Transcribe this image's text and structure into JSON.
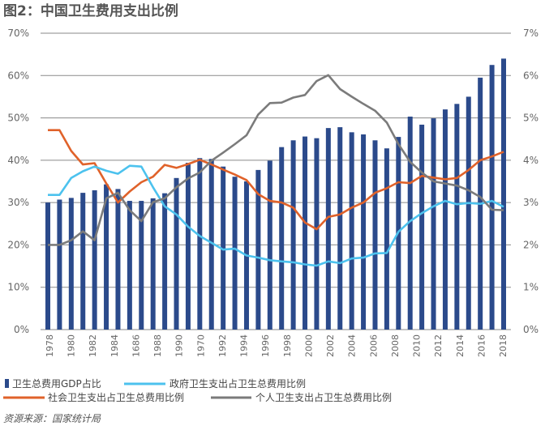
{
  "chart_data": {
    "type": "bar+line",
    "title": "图2：中国卫生费用支出比例",
    "source": "资源来源：国家统计局",
    "colors": {
      "bar": "#2b4a8b",
      "government": "#4cc2ee",
      "social": "#e0622a",
      "personal": "#7b7b7b",
      "grid": "#8a8a8a"
    },
    "x_tick_labels": [
      "1978",
      "1980",
      "1982",
      "1984",
      "1686",
      "1988",
      "1990",
      "1970",
      "1992",
      "1994",
      "1996",
      "1998",
      "2000",
      "2002",
      "2004",
      "2006",
      "2008",
      "2010",
      "2012",
      "2014",
      "2016",
      "2018"
    ],
    "left_axis": {
      "ylim": [
        0,
        70
      ],
      "ticks": [
        "0%",
        "10%",
        "20%",
        "30%",
        "40%",
        "50%",
        "60%",
        "70%"
      ]
    },
    "right_axis": {
      "ylim": [
        0,
        7
      ],
      "ticks": [
        "0%",
        "1%",
        "2%",
        "3%",
        "4%",
        "5%",
        "6%",
        "7%"
      ]
    },
    "grid": true,
    "legend_placement": "bottom",
    "series": [
      {
        "name": "卫生总费用GDP占比",
        "type": "bar",
        "axis": "right",
        "values": [
          3.0,
          3.07,
          3.11,
          3.23,
          3.29,
          3.43,
          3.32,
          3.04,
          3.04,
          3.1,
          3.22,
          3.58,
          3.94,
          4.05,
          4.03,
          3.85,
          3.61,
          3.5,
          3.77,
          3.99,
          4.31,
          4.47,
          4.56,
          4.52,
          4.76,
          4.78,
          4.66,
          4.61,
          4.47,
          4.28,
          4.55,
          5.03,
          4.84,
          4.99,
          5.2,
          5.33,
          5.5,
          5.95,
          6.25,
          6.4
        ]
      },
      {
        "name": "政府卫生支出占卫生总费用比例",
        "type": "line",
        "axis": "left",
        "values": [
          31.8,
          31.8,
          35.8,
          37.4,
          38.5,
          37.5,
          36.8,
          38.7,
          38.5,
          33.6,
          29.1,
          27.2,
          24.3,
          22.1,
          20.5,
          18.9,
          19.1,
          17.5,
          17.0,
          16.4,
          16.1,
          15.9,
          15.4,
          15.1,
          16.1,
          15.7,
          16.8,
          17.0,
          18.0,
          18.1,
          23.1,
          25.6,
          27.5,
          29.1,
          30.4,
          29.6,
          29.9,
          29.7,
          30.4,
          29.0
        ]
      },
      {
        "name": "社会卫生支出占卫生总费用比例",
        "type": "line",
        "axis": "left",
        "values": [
          47.1,
          47.1,
          42.2,
          39.0,
          39.3,
          34.5,
          30.0,
          32.6,
          34.8,
          36.1,
          38.9,
          38.2,
          39.1,
          40.1,
          39.0,
          37.8,
          36.6,
          35.3,
          32.0,
          30.4,
          30.0,
          28.8,
          25.3,
          23.7,
          26.6,
          27.2,
          28.8,
          30.0,
          32.3,
          33.4,
          34.8,
          34.6,
          36.3,
          35.9,
          35.5,
          35.8,
          37.7,
          40.0,
          40.9,
          42.0
        ]
      },
      {
        "name": "个人卫生支出占卫生总费用比例",
        "type": "line",
        "axis": "left",
        "values": [
          20.0,
          20.0,
          21.1,
          23.2,
          21.1,
          31.0,
          32.3,
          28.2,
          25.6,
          30.1,
          31.0,
          33.6,
          35.7,
          37.1,
          39.9,
          41.8,
          43.8,
          45.9,
          50.8,
          53.5,
          53.6,
          54.8,
          55.4,
          58.7,
          60.1,
          56.8,
          55.0,
          53.3,
          51.7,
          48.9,
          43.8,
          39.6,
          37.1,
          35.0,
          34.5,
          34.0,
          32.9,
          31.3,
          28.3,
          28.2
        ]
      }
    ]
  }
}
